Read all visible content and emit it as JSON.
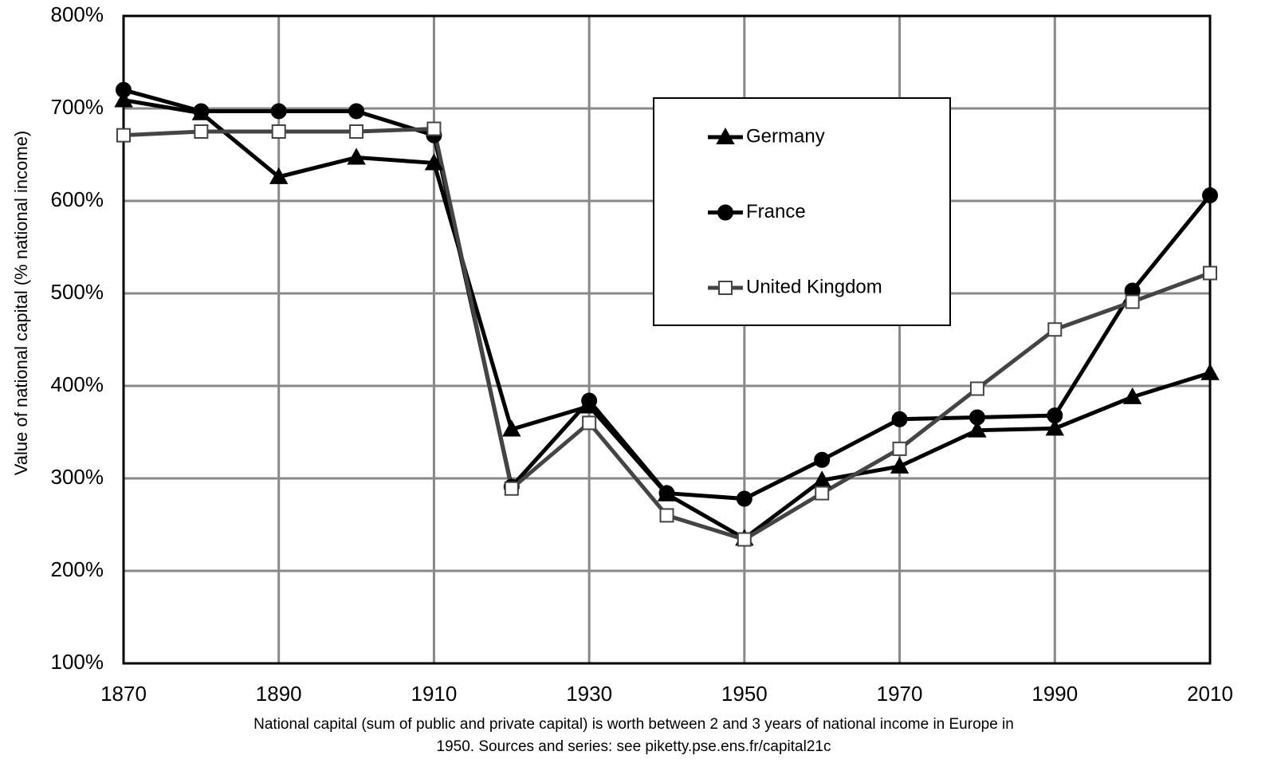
{
  "chart_data": {
    "type": "line",
    "y_label": "Value of national capital (% national income)",
    "caption": [
      "National capital (sum of public and private capital) is worth between 2 and 3 years of national income in Europe in",
      "1950. Sources and series: see piketty.pse.ens.fr/capital21c"
    ],
    "x": [
      1870,
      1880,
      1890,
      1900,
      1910,
      1920,
      1930,
      1940,
      1950,
      1960,
      1970,
      1980,
      1990,
      2000,
      2010
    ],
    "xlim": [
      1870,
      2010
    ],
    "xticks": [
      1870,
      1890,
      1910,
      1930,
      1950,
      1970,
      1990,
      2010
    ],
    "ylim": [
      100,
      800
    ],
    "yticks": [
      {
        "value": 100,
        "label": "100%"
      },
      {
        "value": 200,
        "label": "200%"
      },
      {
        "value": 300,
        "label": "300%"
      },
      {
        "value": 400,
        "label": "400%"
      },
      {
        "value": 500,
        "label": "500%"
      },
      {
        "value": 600,
        "label": "600%"
      },
      {
        "value": 700,
        "label": "700%"
      },
      {
        "value": 800,
        "label": "800%"
      }
    ],
    "grid": true,
    "legend": "upper center",
    "series": [
      {
        "name": "Germany",
        "color": "#000000",
        "marker": "triangle",
        "values": [
          709,
          695,
          626,
          647,
          641,
          353,
          378,
          283,
          235,
          298,
          313,
          352,
          354,
          388,
          414
        ]
      },
      {
        "name": "France",
        "color": "#000000",
        "marker": "circle",
        "values": [
          720,
          697,
          697,
          697,
          671,
          291,
          384,
          284,
          278,
          320,
          364,
          366,
          368,
          503,
          606
        ]
      },
      {
        "name": "United Kingdom",
        "color": "#444444",
        "marker": "square",
        "values": [
          671,
          675,
          675,
          675,
          678,
          289,
          360,
          260,
          234,
          284,
          332,
          397,
          461,
          491,
          522
        ]
      }
    ]
  }
}
